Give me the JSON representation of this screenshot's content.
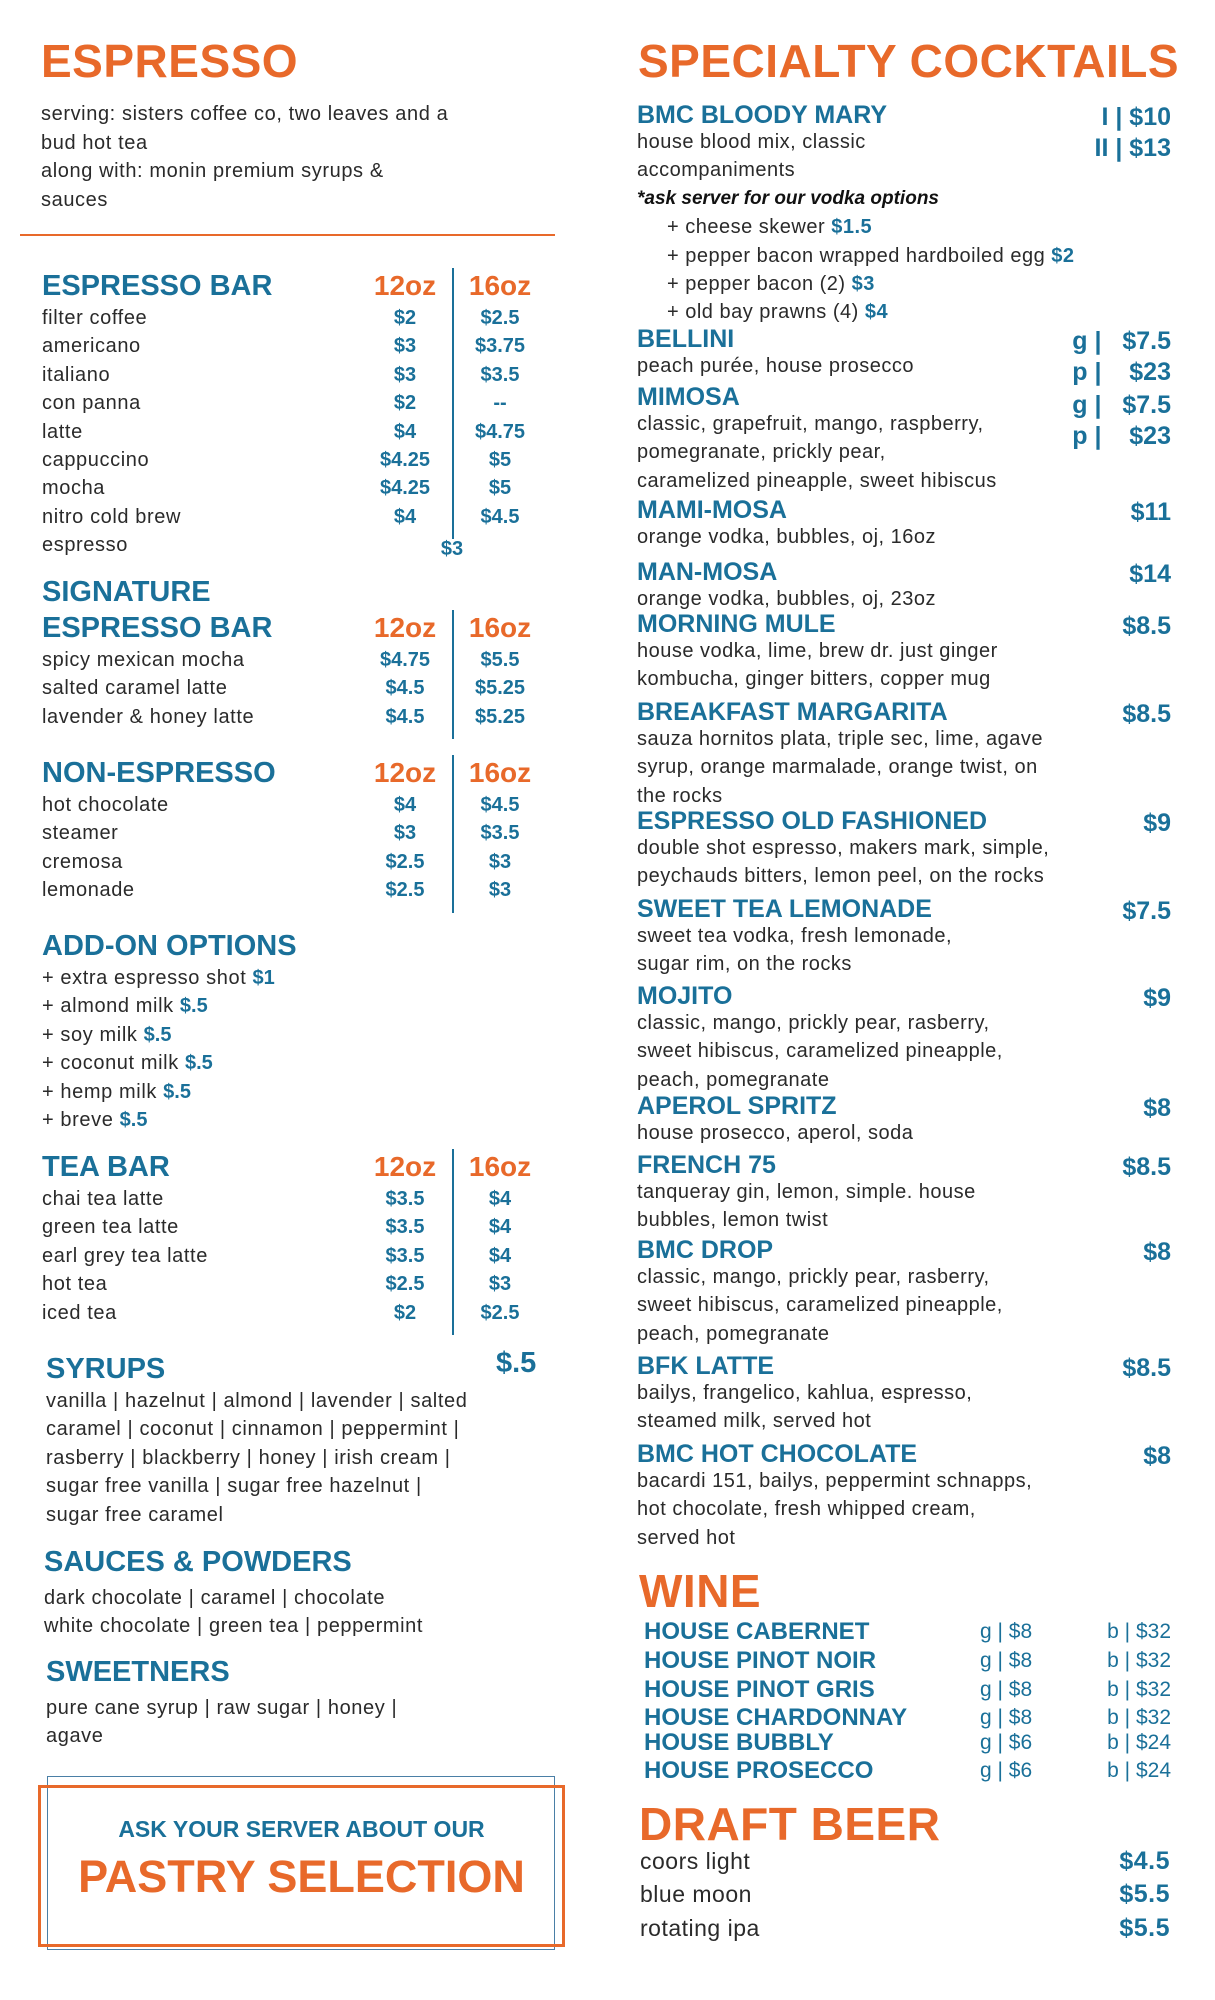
{
  "colors": {
    "accent_orange": "#e8692a",
    "accent_blue": "#1a7099"
  },
  "espresso": {
    "title": "ESPRESSO",
    "intro_lines": [
      "serving: sisters coffee co, two leaves and a",
      "bud hot tea",
      "along with: monin premium syrups &",
      "sauces"
    ]
  },
  "sections": [
    {
      "title_lines": [
        "ESPRESSO BAR"
      ],
      "col12": "12oz",
      "col16": "16oz",
      "rows": [
        {
          "name": "filter coffee",
          "p12": "$2",
          "p16": "$2.5"
        },
        {
          "name": "americano",
          "p12": "$3",
          "p16": "$3.75"
        },
        {
          "name": "italiano",
          "p12": "$3",
          "p16": "$3.5"
        },
        {
          "name": "con panna",
          "p12": "$2",
          "p16": "--"
        },
        {
          "name": "latte",
          "p12": "$4",
          "p16": "$4.75"
        },
        {
          "name": "cappuccino",
          "p12": "$4.25",
          "p16": "$5"
        },
        {
          "name": "mocha",
          "p12": "$4.25",
          "p16": "$5"
        },
        {
          "name": "nitro cold brew",
          "p12": "$4",
          "p16": "$4.5"
        },
        {
          "name": "espresso",
          "single": "$3"
        }
      ]
    },
    {
      "title_lines": [
        "SIGNATURE",
        "ESPRESSO  BAR"
      ],
      "col12": "12oz",
      "col16": "16oz",
      "rows": [
        {
          "name": "spicy mexican mocha",
          "p12": "$4.75",
          "p16": "$5.5"
        },
        {
          "name": "salted caramel latte",
          "p12": "$4.5",
          "p16": "$5.25"
        },
        {
          "name": "lavender & honey latte",
          "p12": "$4.5",
          "p16": "$5.25"
        }
      ]
    },
    {
      "title_lines": [
        "NON-ESPRESSO"
      ],
      "col12": "12oz",
      "col16": "16oz",
      "rows": [
        {
          "name": "hot chocolate",
          "p12": "$4",
          "p16": "$4.5"
        },
        {
          "name": "steamer",
          "p12": "$3",
          "p16": "$3.5"
        },
        {
          "name": "cremosa",
          "p12": "$2.5",
          "p16": "$3"
        },
        {
          "name": "lemonade",
          "p12": "$2.5",
          "p16": "$3"
        }
      ]
    },
    {
      "title_lines": [
        "TEA BAR"
      ],
      "col12": "12oz",
      "col16": "16oz",
      "rows": [
        {
          "name": "chai tea latte",
          "p12": "$3.5",
          "p16": "$4"
        },
        {
          "name": "green tea latte",
          "p12": "$3.5",
          "p16": "$4"
        },
        {
          "name": "earl grey tea latte",
          "p12": "$3.5",
          "p16": "$4"
        },
        {
          "name": "hot tea",
          "p12": "$2.5",
          "p16": "$3"
        },
        {
          "name": "iced tea",
          "p12": "$2",
          "p16": "$2.5"
        }
      ]
    }
  ],
  "addons": {
    "title": "ADD-ON OPTIONS",
    "items": [
      {
        "name": "+ extra espresso shot",
        "price": "$1"
      },
      {
        "name": "+ almond milk",
        "price": "$.5"
      },
      {
        "name": "+ soy milk",
        "price": "$.5"
      },
      {
        "name": "+ coconut milk",
        "price": "$.5"
      },
      {
        "name": "+ hemp milk",
        "price": "$.5"
      },
      {
        "name": "+ breve",
        "price": "$.5"
      }
    ]
  },
  "syrups": {
    "title": "SYRUPS",
    "price": "$.5",
    "lines": [
      "vanilla | hazelnut | almond | lavender |  salted",
      "caramel | coconut | cinnamon | peppermint |",
      "rasberry | blackberry | honey | irish cream |",
      "sugar free vanilla | sugar free hazelnut |",
      "sugar free caramel"
    ]
  },
  "sauces": {
    "title": "SAUCES & POWDERS",
    "lines": [
      "dark chocolate | caramel | chocolate",
      "white chocolate | green tea | peppermint"
    ]
  },
  "sweeteners": {
    "title": "SWEETNERS",
    "lines": [
      "pure cane syrup | raw sugar | honey |",
      "agave"
    ]
  },
  "pastry": {
    "line1": "ASK YOUR SERVER ABOUT OUR",
    "line2": "PASTRY SELECTION"
  },
  "cocktails": {
    "title": "SPECIALTY COCKTAILS",
    "items": [
      {
        "name": "BMC BLOODY MARY",
        "price": "I | $10\nII | $13",
        "desc": [
          "house blood mix, classic",
          "accompaniments"
        ],
        "note": "*ask server for our vodka options",
        "options": [
          {
            "name": "+ cheese skewer",
            "price": "$1.5"
          },
          {
            "name": "+ pepper bacon wrapped hardboiled egg",
            "price": "$2"
          },
          {
            "name": "+ pepper bacon (2)",
            "price": "$3"
          },
          {
            "name": "+ old bay prawns (4)",
            "price": "$4"
          }
        ]
      },
      {
        "name": "BELLINI",
        "price": "g |   $7.5\np |    $23",
        "desc": [
          "peach purée, house prosecco"
        ]
      },
      {
        "name": "MIMOSA",
        "price": "g |   $7.5\np |    $23",
        "desc": [
          "classic, grapefruit, mango, raspberry,",
          "pomegranate, prickly pear,",
          "caramelized pineapple, sweet hibiscus"
        ]
      },
      {
        "name": "MAMI-MOSA",
        "price": "$11",
        "desc": [
          "orange vodka, bubbles, oj, 16oz"
        ]
      },
      {
        "name": "MAN-MOSA",
        "price": "$14",
        "desc": [
          "orange vodka, bubbles, oj, 23oz"
        ]
      },
      {
        "name": "MORNING MULE",
        "price": "$8.5",
        "desc": [
          "house vodka, lime, brew dr. just ginger",
          "kombucha, ginger bitters, copper mug"
        ]
      },
      {
        "name": "BREAKFAST MARGARITA",
        "price": "$8.5",
        "desc": [
          "sauza hornitos plata, triple sec, lime, agave",
          "syrup, orange marmalade, orange twist, on",
          "the rocks"
        ]
      },
      {
        "name": "ESPRESSO OLD FASHIONED",
        "price": "$9",
        "desc": [
          "double shot espresso, makers mark, simple,",
          "peychauds bitters, lemon peel, on the rocks"
        ]
      },
      {
        "name": "SWEET TEA LEMONADE",
        "price": "$7.5",
        "desc": [
          "sweet tea vodka, fresh lemonade,",
          "sugar rim, on the rocks"
        ]
      },
      {
        "name": "MOJITO",
        "price": "$9",
        "desc": [
          "classic, mango, prickly pear, rasberry,",
          "sweet hibiscus, caramelized pineapple,",
          "peach, pomegranate"
        ]
      },
      {
        "name": "APEROL SPRITZ",
        "price": "$8",
        "desc": [
          "house prosecco, aperol, soda"
        ]
      },
      {
        "name": "FRENCH 75",
        "price": "$8.5",
        "desc": [
          "tanqueray gin, lemon, simple. house",
          "bubbles, lemon twist"
        ]
      },
      {
        "name": "BMC DROP",
        "price": "$8",
        "desc": [
          "classic, mango, prickly pear, rasberry,",
          "sweet hibiscus, caramelized pineapple,",
          "peach, pomegranate"
        ]
      },
      {
        "name": "BFK LATTE",
        "price": "$8.5",
        "desc": [
          "bailys, frangelico, kahlua, espresso,",
          "steamed milk, served hot"
        ]
      },
      {
        "name": "BMC HOT CHOCOLATE",
        "price": "$8",
        "desc": [
          "bacardi 151, bailys, peppermint schnapps,",
          "hot chocolate, fresh whipped cream,",
          "served hot"
        ]
      }
    ]
  },
  "wine": {
    "title": "WINE",
    "items": [
      {
        "name": "HOUSE CABERNET",
        "glass": "g | $8",
        "bottle": "b | $32"
      },
      {
        "name": "HOUSE PINOT NOIR",
        "glass": "g | $8",
        "bottle": "b | $32"
      },
      {
        "name": "HOUSE PINOT GRIS",
        "glass": "g | $8",
        "bottle": "b | $32"
      },
      {
        "name": "HOUSE CHARDONNAY",
        "glass": "g | $8",
        "bottle": "b | $32"
      },
      {
        "name": "HOUSE BUBBLY",
        "glass": "g | $6",
        "bottle": "b | $24"
      },
      {
        "name": "HOUSE PROSECCO",
        "glass": "g | $6",
        "bottle": "b | $24"
      }
    ]
  },
  "beer": {
    "title": "DRAFT BEER",
    "items": [
      {
        "name": "coors light",
        "price": "$4.5"
      },
      {
        "name": "blue moon",
        "price": "$5.5"
      },
      {
        "name": "rotating ipa",
        "price": "$5.5"
      }
    ]
  }
}
